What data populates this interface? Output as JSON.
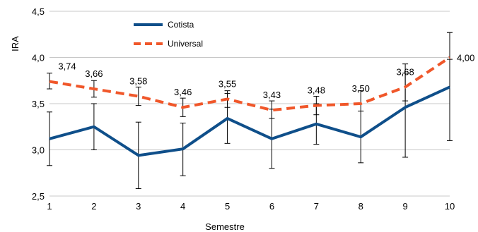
{
  "chart_data": {
    "type": "line",
    "title": "",
    "xlabel": "Semestre",
    "ylabel": "IRA",
    "x": [
      "1",
      "2",
      "3",
      "4",
      "5",
      "6",
      "7",
      "8",
      "9",
      "10"
    ],
    "ylim": [
      2.5,
      4.5
    ],
    "yticks": [
      "2,5",
      "3,0",
      "3,5",
      "4,0",
      "4,5"
    ],
    "grid": "horizontal",
    "legend_position": "top-left",
    "series": [
      {
        "name": "Cotista",
        "color": "#0f4f8a",
        "style": "solid",
        "values": [
          3.12,
          3.25,
          2.94,
          3.01,
          3.34,
          3.12,
          3.28,
          3.14,
          3.46,
          3.68
        ],
        "error_low": [
          2.83,
          3.0,
          2.58,
          2.72,
          3.07,
          2.8,
          3.06,
          2.86,
          2.92,
          3.1
        ],
        "error_high": [
          3.41,
          3.5,
          3.3,
          3.29,
          3.61,
          3.44,
          3.5,
          3.42,
          3.83,
          4.27
        ]
      },
      {
        "name": "Universal",
        "color": "#f0572a",
        "style": "dashed",
        "values": [
          3.74,
          3.66,
          3.58,
          3.46,
          3.55,
          3.43,
          3.48,
          3.5,
          3.68,
          4.0
        ],
        "data_labels": [
          "3,74",
          "3,66",
          "3,58",
          "3,46",
          "3,55",
          "3,43",
          "3,48",
          "3,50",
          "3,68",
          "4,00"
        ],
        "error_low": [
          3.66,
          3.57,
          3.48,
          3.36,
          3.46,
          3.34,
          3.38,
          3.42,
          3.53,
          3.98
        ],
        "error_high": [
          3.83,
          3.75,
          3.68,
          3.56,
          3.64,
          3.53,
          3.58,
          3.64,
          3.93,
          4.27
        ]
      }
    ]
  }
}
